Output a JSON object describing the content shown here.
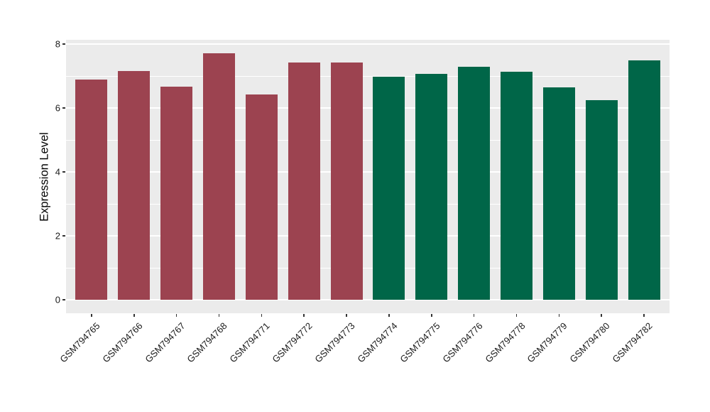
{
  "chart_data": {
    "type": "bar",
    "title": "",
    "xlabel": "",
    "ylabel": "Expression Level",
    "ylim": [
      0,
      8
    ],
    "yticks": [
      0,
      2,
      4,
      6,
      8
    ],
    "minor_gridlines": [
      1,
      3,
      5,
      7
    ],
    "grid": true,
    "legend_position": "none",
    "panel_background": "#EBEBEB",
    "gridline_color": "#ffffff",
    "bar_colors": {
      "group1": "#9C4350",
      "group2": "#006648"
    },
    "categories": [
      "GSM794765",
      "GSM794766",
      "GSM794767",
      "GSM794768",
      "GSM794771",
      "GSM794772",
      "GSM794773",
      "GSM794774",
      "GSM794775",
      "GSM794776",
      "GSM794778",
      "GSM794779",
      "GSM794780",
      "GSM794782"
    ],
    "values": [
      6.9,
      7.15,
      6.67,
      7.72,
      6.42,
      7.43,
      7.42,
      6.97,
      7.06,
      7.3,
      7.13,
      6.65,
      6.24,
      7.48
    ],
    "groups": [
      "group1",
      "group1",
      "group1",
      "group1",
      "group1",
      "group1",
      "group1",
      "group2",
      "group2",
      "group2",
      "group2",
      "group2",
      "group2",
      "group2"
    ]
  }
}
